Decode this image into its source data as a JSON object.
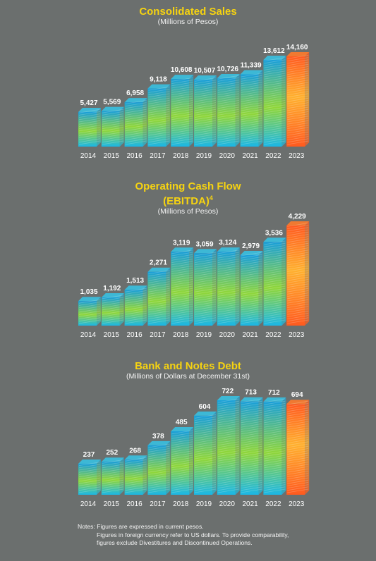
{
  "colors": {
    "background": "#6b6f6e",
    "title": "#f6d311",
    "bar_gradient": [
      "#1bb7e6",
      "#8fd63a",
      "#1a9fd8"
    ],
    "highlight_gradient": [
      "#ff5a1f",
      "#ffb02e"
    ]
  },
  "charts": [
    {
      "title": "Consolidated Sales",
      "subtitle": "(Millions of Pesos)",
      "superscript": ""
    },
    {
      "title": "Operating Cash Flow",
      "title_line2": "(EBITDA)",
      "superscript": "4",
      "subtitle": "(Millions of Pesos)"
    },
    {
      "title": "Bank and Notes Debt",
      "subtitle": "(Millions of Dollars at December 31st)",
      "superscript": ""
    }
  ],
  "chart_data": [
    {
      "type": "bar",
      "title": "Consolidated Sales",
      "subtitle": "(Millions of Pesos)",
      "categories": [
        "2014",
        "2015",
        "2016",
        "2017",
        "2018",
        "2019",
        "2020",
        "2021",
        "2022",
        "2023"
      ],
      "values": [
        5427,
        5569,
        6958,
        9118,
        10608,
        10507,
        10726,
        11339,
        13612,
        14160
      ],
      "value_labels": [
        "5,427",
        "5,569",
        "6,958",
        "9,118",
        "10,608",
        "10,507",
        "10,726",
        "11,339",
        "13,612",
        "14,160"
      ],
      "highlight": "2023",
      "grid": false
    },
    {
      "type": "bar",
      "title": "Operating Cash Flow (EBITDA)",
      "subtitle": "(Millions of Pesos)",
      "categories": [
        "2014",
        "2015",
        "2016",
        "2017",
        "2018",
        "2019",
        "2020",
        "2021",
        "2022",
        "2023"
      ],
      "values": [
        1035,
        1192,
        1513,
        2271,
        3119,
        3059,
        3124,
        2979,
        3536,
        4229
      ],
      "value_labels": [
        "1,035",
        "1,192",
        "1,513",
        "2,271",
        "3,119",
        "3,059",
        "3,124",
        "2,979",
        "3,536",
        "4,229"
      ],
      "highlight": "2023",
      "grid": false
    },
    {
      "type": "bar",
      "title": "Bank and Notes Debt",
      "subtitle": "(Millions of Dollars at December 31st)",
      "categories": [
        "2014",
        "2015",
        "2016",
        "2017",
        "2018",
        "2019",
        "2020",
        "2021",
        "2022",
        "2023"
      ],
      "values": [
        237,
        252,
        268,
        378,
        485,
        604,
        722,
        713,
        712,
        694
      ],
      "value_labels": [
        "237",
        "252",
        "268",
        "378",
        "485",
        "604",
        "722",
        "713",
        "712",
        "694"
      ],
      "highlight": "2023",
      "grid": false
    }
  ],
  "notes": {
    "line1": "Notes: Figures are expressed in current pesos.",
    "line2": "Figures in foreign currency refer to US dollars. To provide comparability,",
    "line3": "figures exclude Divestitures and Discontinued Operations."
  }
}
